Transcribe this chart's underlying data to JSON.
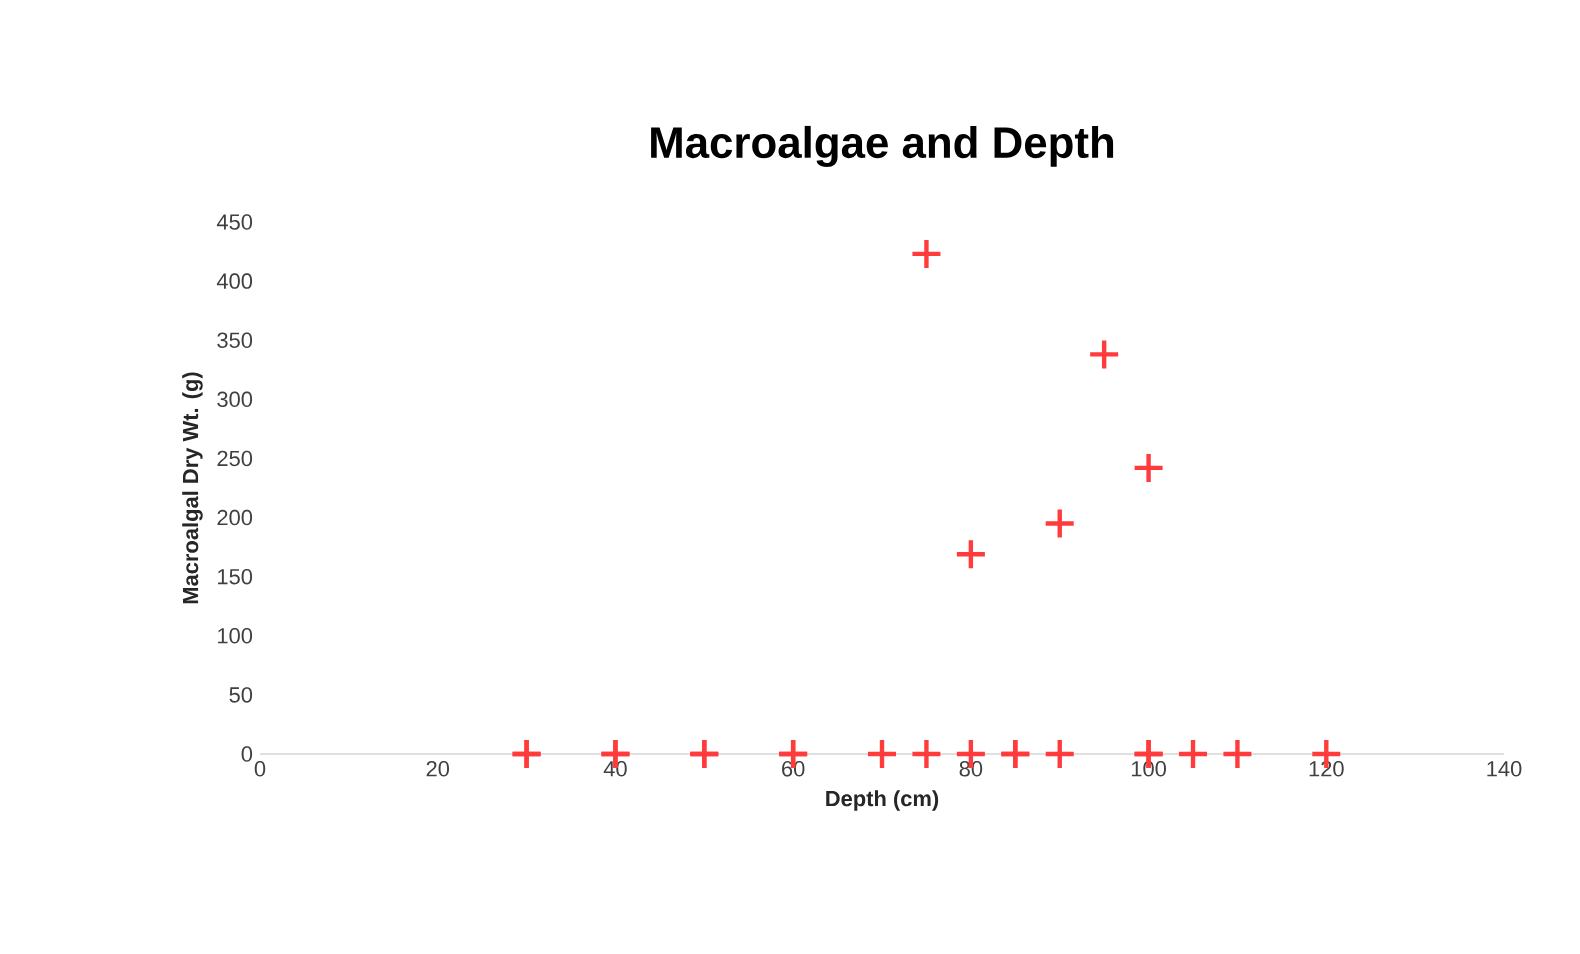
{
  "chart_data": {
    "type": "scatter",
    "title": "Macroalgae and Depth",
    "xlabel": "Depth (cm)",
    "ylabel": "Macroalgal Dry Wt. (g)",
    "x": [
      30,
      30,
      40,
      40,
      50,
      50,
      60,
      60,
      70,
      75,
      80,
      85,
      85,
      90,
      100,
      100,
      105,
      110,
      120,
      75,
      80,
      90,
      95,
      100
    ],
    "values": [
      0,
      0,
      0,
      0,
      0,
      0,
      0,
      0,
      0,
      0,
      0,
      0,
      0,
      0,
      0,
      0,
      0,
      0,
      0,
      423,
      169,
      195,
      338,
      242
    ],
    "color": "#ff3b3b",
    "marker": "cross",
    "xlim": [
      0,
      140
    ],
    "xticks": [
      0,
      20,
      40,
      60,
      80,
      100,
      120,
      140
    ],
    "ylim": [
      0,
      450
    ],
    "yticks": [
      0,
      50,
      100,
      150,
      200,
      250,
      300,
      350,
      400,
      450
    ]
  }
}
